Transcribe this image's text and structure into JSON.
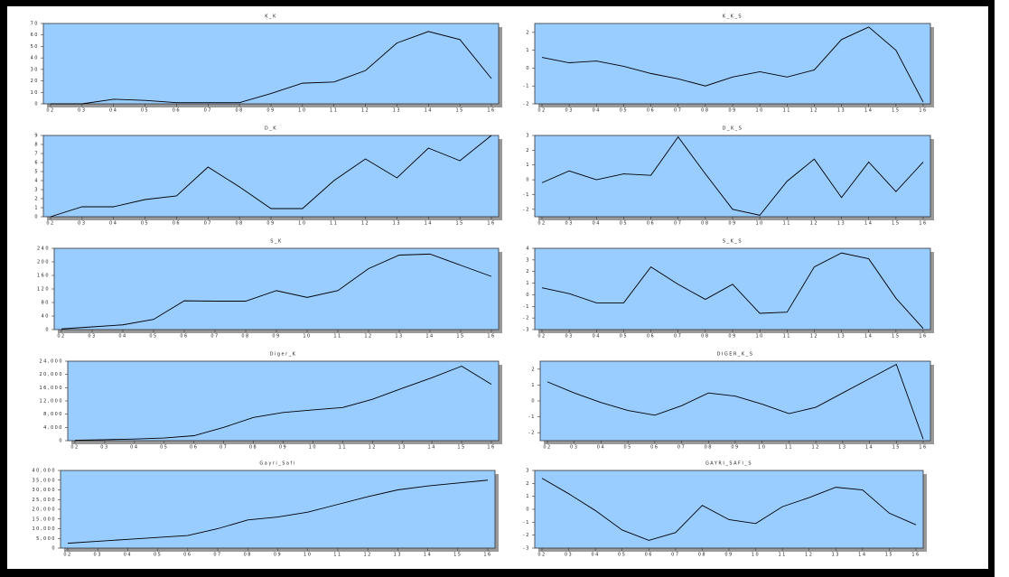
{
  "chart_data": [
    {
      "type": "line",
      "title": "K_K",
      "categories": [
        "02",
        "03",
        "04",
        "05",
        "06",
        "07",
        "08",
        "09",
        "10",
        "11",
        "12",
        "13",
        "14",
        "15",
        "16"
      ],
      "values": [
        0,
        0,
        4,
        3,
        1,
        1,
        1,
        9,
        18,
        19,
        29,
        53,
        63,
        56,
        22
      ],
      "color": "#000000",
      "ylim": [
        0,
        70
      ],
      "yticks": [
        0,
        10,
        20,
        30,
        40,
        50,
        60,
        70
      ]
    },
    {
      "type": "line",
      "title": "K_K_S",
      "categories": [
        "02",
        "03",
        "04",
        "05",
        "06",
        "07",
        "08",
        "09",
        "10",
        "11",
        "12",
        "13",
        "14",
        "15",
        "16"
      ],
      "values": [
        0.6,
        0.3,
        0.4,
        0.1,
        -0.3,
        -0.6,
        -1.0,
        -0.5,
        -0.2,
        -0.5,
        -0.1,
        1.6,
        2.3,
        1.0,
        -1.9
      ],
      "color": "#000000",
      "ylim": [
        -2,
        2.5
      ],
      "yticks": [
        -2,
        -1,
        0,
        1,
        2
      ]
    },
    {
      "type": "line",
      "title": "D_K",
      "categories": [
        "02",
        "03",
        "04",
        "05",
        "06",
        "07",
        "08",
        "09",
        "10",
        "11",
        "12",
        "13",
        "14",
        "15",
        "16"
      ],
      "values": [
        0,
        1.1,
        1.1,
        1.9,
        2.3,
        5.5,
        3.3,
        0.9,
        0.9,
        4.0,
        6.4,
        4.3,
        7.6,
        6.2,
        9.0
      ],
      "color": "#000000",
      "ylim": [
        0,
        9
      ],
      "yticks": [
        0,
        1,
        2,
        3,
        4,
        5,
        6,
        7,
        8,
        9
      ]
    },
    {
      "type": "line",
      "title": "D_K_S",
      "categories": [
        "02",
        "03",
        "04",
        "05",
        "06",
        "07",
        "08",
        "09",
        "10",
        "11",
        "12",
        "13",
        "14",
        "15",
        "16"
      ],
      "values": [
        -0.2,
        0.6,
        0.0,
        0.4,
        0.3,
        2.9,
        0.4,
        -2.0,
        -2.4,
        -0.1,
        1.4,
        -1.2,
        1.2,
        -0.8,
        1.2
      ],
      "color": "#000000",
      "ylim": [
        -2.5,
        3
      ],
      "yticks": [
        -2,
        -1,
        0,
        1,
        2,
        3
      ]
    },
    {
      "type": "line",
      "title": "S_K",
      "categories": [
        "02",
        "03",
        "04",
        "05",
        "06",
        "07",
        "08",
        "09",
        "10",
        "11",
        "12",
        "13",
        "14",
        "15",
        "16"
      ],
      "values": [
        2,
        8,
        14,
        30,
        85,
        84,
        84,
        115,
        95,
        115,
        180,
        220,
        223,
        190,
        157
      ],
      "color": "#000000",
      "ylim": [
        0,
        240
      ],
      "yticks": [
        0,
        40,
        80,
        120,
        160,
        200,
        240
      ]
    },
    {
      "type": "line",
      "title": "S_K_S",
      "categories": [
        "02",
        "03",
        "04",
        "05",
        "06",
        "07",
        "08",
        "09",
        "10",
        "11",
        "12",
        "13",
        "14",
        "15",
        "16"
      ],
      "values": [
        0.6,
        0.1,
        -0.7,
        -0.7,
        2.4,
        0.9,
        -0.4,
        0.9,
        -1.6,
        -1.5,
        2.4,
        3.6,
        3.1,
        -0.3,
        -2.9
      ],
      "color": "#000000",
      "ylim": [
        -3,
        4
      ],
      "yticks": [
        -3,
        -2,
        -1,
        0,
        1,
        2,
        3,
        4
      ]
    },
    {
      "type": "line",
      "title": "Diger_K",
      "categories": [
        "02",
        "03",
        "04",
        "05",
        "06",
        "07",
        "08",
        "09",
        "10",
        "11",
        "12",
        "13",
        "14",
        "15",
        "16"
      ],
      "values": [
        100,
        300,
        500,
        800,
        1500,
        4000,
        7000,
        8500,
        9300,
        10000,
        12500,
        15800,
        19000,
        22500,
        17000
      ],
      "color": "#000000",
      "ylim": [
        0,
        24000
      ],
      "yticks": [
        0,
        {
          "value": 4000,
          "label": "4,000"
        },
        {
          "value": 8000,
          "label": "8,000"
        },
        {
          "value": 12000,
          "label": "12,000"
        },
        {
          "value": 16000,
          "label": "16,000"
        },
        {
          "value": 20000,
          "label": "20,000"
        },
        {
          "value": 24000,
          "label": "24,000"
        }
      ]
    },
    {
      "type": "line",
      "title": "DIGER_K_S",
      "categories": [
        "02",
        "03",
        "04",
        "05",
        "06",
        "07",
        "08",
        "09",
        "10",
        "11",
        "12",
        "13",
        "14",
        "15",
        "16"
      ],
      "values": [
        1.2,
        0.5,
        -0.1,
        -0.6,
        -0.9,
        -0.3,
        0.5,
        0.3,
        -0.2,
        -0.8,
        -0.4,
        0.5,
        1.4,
        2.3,
        -2.4
      ],
      "color": "#000000",
      "ylim": [
        -2.5,
        2.5
      ],
      "yticks": [
        -2,
        -1,
        0,
        1,
        2
      ]
    },
    {
      "type": "line",
      "title": "Gayri_Safi",
      "categories": [
        "02",
        "03",
        "04",
        "05",
        "06",
        "07",
        "08",
        "09",
        "10",
        "11",
        "12",
        "13",
        "14",
        "15",
        "16"
      ],
      "values": [
        2500,
        3500,
        4500,
        5500,
        6500,
        10000,
        14500,
        16000,
        18500,
        22500,
        26500,
        30000,
        32000,
        33500,
        35000
      ],
      "color": "#000000",
      "ylim": [
        0,
        40000
      ],
      "yticks": [
        0,
        {
          "value": 5000,
          "label": "5,000"
        },
        {
          "value": 10000,
          "label": "10,000"
        },
        {
          "value": 15000,
          "label": "15,000"
        },
        {
          "value": 20000,
          "label": "20,000"
        },
        {
          "value": 25000,
          "label": "25,000"
        },
        {
          "value": 30000,
          "label": "30,000"
        },
        {
          "value": 35000,
          "label": "35,000"
        },
        {
          "value": 40000,
          "label": "40,000"
        }
      ]
    },
    {
      "type": "line",
      "title": "GAYRI_SAFI_S",
      "categories": [
        "02",
        "03",
        "04",
        "05",
        "06",
        "07",
        "08",
        "09",
        "10",
        "11",
        "12",
        "13",
        "14",
        "15",
        "16"
      ],
      "values": [
        2.4,
        1.2,
        -0.1,
        -1.6,
        -2.4,
        -1.8,
        0.3,
        -0.8,
        -1.1,
        0.2,
        0.9,
        1.7,
        1.5,
        -0.3,
        -1.2
      ],
      "color": "#000000",
      "ylim": [
        -3,
        3
      ],
      "yticks": [
        -3,
        -2,
        -1,
        0,
        1,
        2,
        3
      ]
    }
  ]
}
